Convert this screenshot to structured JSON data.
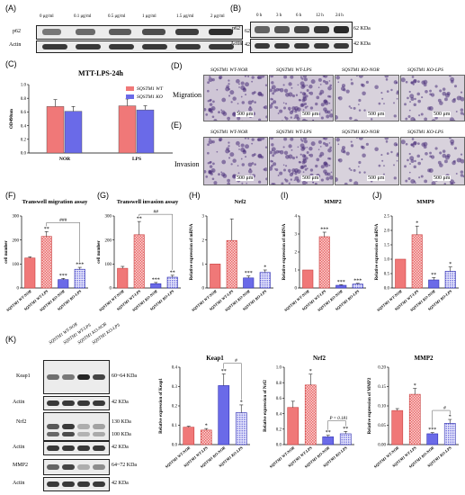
{
  "panels": {
    "A": {
      "label": "(A)",
      "lanes": [
        "0 μg/ml",
        "0.1 μg/ml",
        "0.5 μg/ml",
        "1 μg/ml",
        "1.5 μg/ml",
        "2 μg/ml"
      ],
      "rows": [
        {
          "name": "p62",
          "kda": "62 KDa"
        },
        {
          "name": "Actin",
          "kda": "42 KDa"
        }
      ]
    },
    "B": {
      "label": "(B)",
      "lanes": [
        "0 h",
        "3 h",
        "6 h",
        "12 h",
        "24 h"
      ],
      "rows": [
        {
          "name": "p62",
          "kda": "62 KDa"
        },
        {
          "name": "Actin",
          "kda": "42 KDa"
        }
      ]
    },
    "C": {
      "label": "(C)",
      "title": "MTT-LPS-24h",
      "ylabel": "OD490nm"
    },
    "D": {
      "label": "(D)",
      "row_label": "Migration",
      "captions": [
        "SQSTM1 WT-NOR",
        "SQSTM1 WT-LPS",
        "SQSTM1 KO-NOR",
        "SQSTM1 KO-LPS"
      ],
      "scale": "500 μm"
    },
    "E": {
      "label": "(E)",
      "row_label": "Invasion",
      "captions": [
        "SQSTM1 WT-NOR",
        "SQSTM1 WT-LPS",
        "SQSTM1 KO-NOR",
        "SQSTM1 KO-LPS"
      ],
      "scale": "500 μm"
    },
    "F": {
      "label": "(F)",
      "title": "Transwell migration assay"
    },
    "G": {
      "label": "(G)",
      "title": "Transwell invasion assay"
    },
    "H": {
      "label": "(H)",
      "title": "Nrf2"
    },
    "I": {
      "label": "(I)",
      "title": "MMP2"
    },
    "J": {
      "label": "(J)",
      "title": "MMP9"
    },
    "K": {
      "label": "(K)",
      "lanes": [
        "SQSTM1 WT-NOR",
        "SQSTM1 WT-LPS",
        "SQSTM1 KO-NOR",
        "SQSTM1 KO-LPS"
      ],
      "rows": [
        {
          "name": "Keap1",
          "kda": "60~64 KDa"
        },
        {
          "name": "Actin",
          "kda": "42 KDa"
        },
        {
          "name": "Nrf2",
          "kda": "130 KDa"
        },
        {
          "name": "",
          "kda": "100 KDa"
        },
        {
          "name": "Actin",
          "kda": "42 KDa"
        },
        {
          "name": "MMP2",
          "kda": "64~72 KDa"
        },
        {
          "name": "Actin",
          "kda": "42 KDa"
        }
      ]
    }
  },
  "chart_data": [
    {
      "id": "C",
      "type": "bar",
      "title": "MTT-LPS-24h",
      "ylabel": "OD490nm",
      "categories": [
        "NOR",
        "LPS"
      ],
      "ylim": [
        0,
        1.0
      ],
      "yticks": [
        "0.0",
        "0.2",
        "0.4",
        "0.6",
        "0.8",
        "1.0"
      ],
      "series": [
        {
          "name": "SQSTM1 WT",
          "color": "#f07878",
          "values": [
            0.68,
            0.69
          ],
          "err": [
            0.1,
            0.1
          ]
        },
        {
          "name": "SQSTM1 KO",
          "color": "#6a6ae8",
          "values": [
            0.61,
            0.63
          ],
          "err": [
            0.07,
            0.06
          ]
        }
      ]
    },
    {
      "id": "F",
      "type": "bar",
      "title": "Transwell migration assay",
      "ylabel": "cell number",
      "ylim": [
        0,
        300
      ],
      "yticks": [
        "0",
        "100",
        "200",
        "300"
      ],
      "categories": [
        "SQSTM1 WT-NOR",
        "SQSTM1 WT-LPS",
        "SQSTM1 KO-NOR",
        "SQSTM1 KO-LPS"
      ],
      "values": [
        125,
        215,
        35,
        78
      ],
      "err": [
        5,
        20,
        5,
        8
      ],
      "stars": [
        "",
        "**",
        "***",
        "***"
      ],
      "bracket": "###"
    },
    {
      "id": "G",
      "type": "bar",
      "title": "Transwell invasion assay",
      "ylabel": "cell number",
      "ylim": [
        0,
        300
      ],
      "yticks": [
        "0",
        "100",
        "200",
        "300"
      ],
      "categories": [
        "SQSTM1 WT-NOR",
        "SQSTM1 WT-LPS",
        "SQSTM1 KO-NOR",
        "SQSTM1 KO-LPS"
      ],
      "values": [
        82,
        222,
        18,
        45
      ],
      "err": [
        8,
        55,
        5,
        8
      ],
      "stars": [
        "",
        "**",
        "***",
        "**"
      ],
      "bracket": "##"
    },
    {
      "id": "H",
      "type": "bar",
      "title": "Nrf2",
      "ylabel": "Relative expression of mRNA",
      "ylim": [
        0,
        3
      ],
      "yticks": [
        "0",
        "1",
        "2",
        "3"
      ],
      "categories": [
        "SQSTM1 WT-NOR",
        "SQSTM1 WT-LPS",
        "SQSTM1 KO-NOR",
        "SQSTM1 KO-LPS"
      ],
      "values": [
        1.0,
        1.98,
        0.42,
        0.65
      ],
      "err": [
        0,
        0.9,
        0.08,
        0.1
      ],
      "stars": [
        "",
        "",
        "***",
        "*"
      ]
    },
    {
      "id": "I",
      "type": "bar",
      "title": "MMP2",
      "ylabel": "Relative expression of mRNA",
      "ylim": [
        0,
        4
      ],
      "yticks": [
        "0",
        "1",
        "2",
        "3",
        "4"
      ],
      "categories": [
        "SQSTM1 WT-NOR",
        "SQSTM1 WT-LPS",
        "SQSTM1 KO-NOR",
        "SQSTM1 KO-LPS"
      ],
      "values": [
        1.0,
        2.85,
        0.15,
        0.22
      ],
      "err": [
        0,
        0.25,
        0.03,
        0.04
      ],
      "stars": [
        "",
        "***",
        "***",
        "***"
      ]
    },
    {
      "id": "J",
      "type": "bar",
      "title": "MMP9",
      "ylabel": "Relative expression of mRNA",
      "ylim": [
        0,
        2.5
      ],
      "yticks": [
        "0.0",
        "0.5",
        "1.0",
        "1.5",
        "2.0",
        "2.5"
      ],
      "categories": [
        "SQSTM1 WT-NOR",
        "SQSTM1 WT-LPS",
        "SQSTM1 KO-NOR",
        "SQSTM1 KO-LPS"
      ],
      "values": [
        1.0,
        1.85,
        0.28,
        0.58
      ],
      "err": [
        0,
        0.3,
        0.08,
        0.15
      ],
      "stars": [
        "",
        "*",
        "**",
        "*"
      ]
    },
    {
      "id": "K1",
      "type": "bar",
      "title": "Keap1",
      "ylabel": "Relative expression of Keap1",
      "ylim": [
        0,
        0.4
      ],
      "yticks": [
        "0.0",
        "0.1",
        "0.2",
        "0.3",
        "0.4"
      ],
      "categories": [
        "SQSTM1 WT-NOR",
        "SQSTM1 WT-LPS",
        "SQSTM1 KO-NOR",
        "SQSTM1 KO-LPS"
      ],
      "values": [
        0.09,
        0.075,
        0.305,
        0.165
      ],
      "err": [
        0.005,
        0.008,
        0.06,
        0.04
      ],
      "stars": [
        "",
        "*",
        "**",
        "*"
      ],
      "bracket": "#"
    },
    {
      "id": "K2",
      "type": "bar",
      "title": "Nrf2",
      "ylabel": "Relative expression of Nrf2",
      "ylim": [
        0,
        1.0
      ],
      "yticks": [
        "0.0",
        "0.2",
        "0.4",
        "0.6",
        "0.8",
        "1.0"
      ],
      "categories": [
        "SQSTM1 WT-NOR",
        "SQSTM1 WT-LPS",
        "SQSTM1 KO-NOR",
        "SQSTM1 KO-LPS"
      ],
      "values": [
        0.48,
        0.77,
        0.1,
        0.14
      ],
      "err": [
        0.08,
        0.14,
        0.02,
        0.03
      ],
      "stars": [
        "",
        "*",
        "**",
        "**"
      ],
      "bracket": "P = 0.181"
    },
    {
      "id": "K3",
      "type": "bar",
      "title": "MMP2",
      "ylabel": "Relative expression of MMP2",
      "ylim": [
        0,
        0.2
      ],
      "yticks": [
        "0.00",
        "0.05",
        "0.10",
        "0.15",
        "0.20"
      ],
      "categories": [
        "SQSTM1 WT-NOR",
        "SQSTM1 WT-LPS",
        "SQSTM1 KO-NOR",
        "SQSTM1 KO-LPS"
      ],
      "values": [
        0.088,
        0.13,
        0.028,
        0.055
      ],
      "err": [
        0.005,
        0.015,
        0.003,
        0.01
      ],
      "stars": [
        "",
        "*",
        "***",
        "*"
      ],
      "bracket": "#"
    }
  ]
}
